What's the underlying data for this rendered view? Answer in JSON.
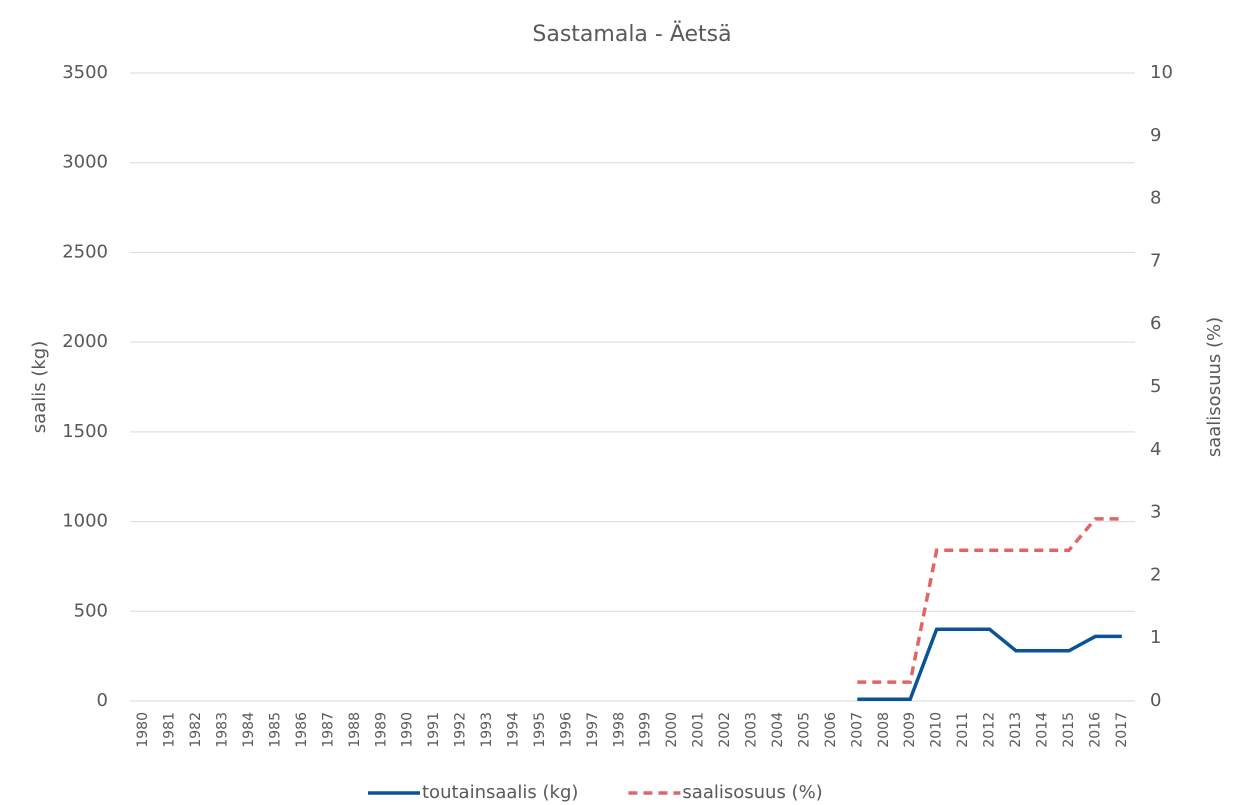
{
  "chart_data": {
    "type": "line",
    "title": "Sastamala - Äetsä",
    "y_label": "saalis (kg)",
    "y2_label": "saalisosuus (%)",
    "categories": [
      "1980",
      "1981",
      "1982",
      "1983",
      "1984",
      "1985",
      "1986",
      "1987",
      "1988",
      "1989",
      "1990",
      "1991",
      "1992",
      "1993",
      "1994",
      "1995",
      "1996",
      "1997",
      "1998",
      "1999",
      "2000",
      "2001",
      "2002",
      "2003",
      "2004",
      "2005",
      "2006",
      "2007",
      "2008",
      "2009",
      "2010",
      "2011",
      "2012",
      "2013",
      "2014",
      "2015",
      "2016",
      "2017"
    ],
    "series": [
      {
        "name": "toutainsaalis (kg)",
        "color": "#0b5394",
        "dash": false,
        "values": [
          null,
          null,
          null,
          null,
          null,
          null,
          null,
          null,
          null,
          null,
          null,
          null,
          null,
          null,
          null,
          null,
          null,
          null,
          null,
          null,
          null,
          null,
          null,
          null,
          null,
          null,
          null,
          10,
          10,
          10,
          400,
          400,
          400,
          280,
          280,
          280,
          360,
          360
        ]
      },
      {
        "name": "saalisosuus (%)",
        "color": "#e06666",
        "dash": true,
        "axis": "y2",
        "values": [
          null,
          null,
          null,
          null,
          null,
          null,
          null,
          null,
          null,
          null,
          null,
          null,
          null,
          null,
          null,
          null,
          null,
          null,
          null,
          null,
          null,
          null,
          null,
          null,
          null,
          null,
          null,
          0.3,
          0.3,
          0.3,
          2.4,
          2.4,
          2.4,
          2.4,
          2.4,
          2.4,
          2.9,
          2.9
        ]
      }
    ],
    "ylim": [
      0,
      3500
    ],
    "yticks": [
      0,
      500,
      1000,
      1500,
      2000,
      2500,
      3000,
      3500
    ],
    "y2lim": [
      0,
      10
    ],
    "y2ticks": [
      0,
      1,
      2,
      3,
      4,
      5,
      6,
      7,
      8,
      9,
      10
    ],
    "grid": true,
    "legend": "bottom"
  }
}
